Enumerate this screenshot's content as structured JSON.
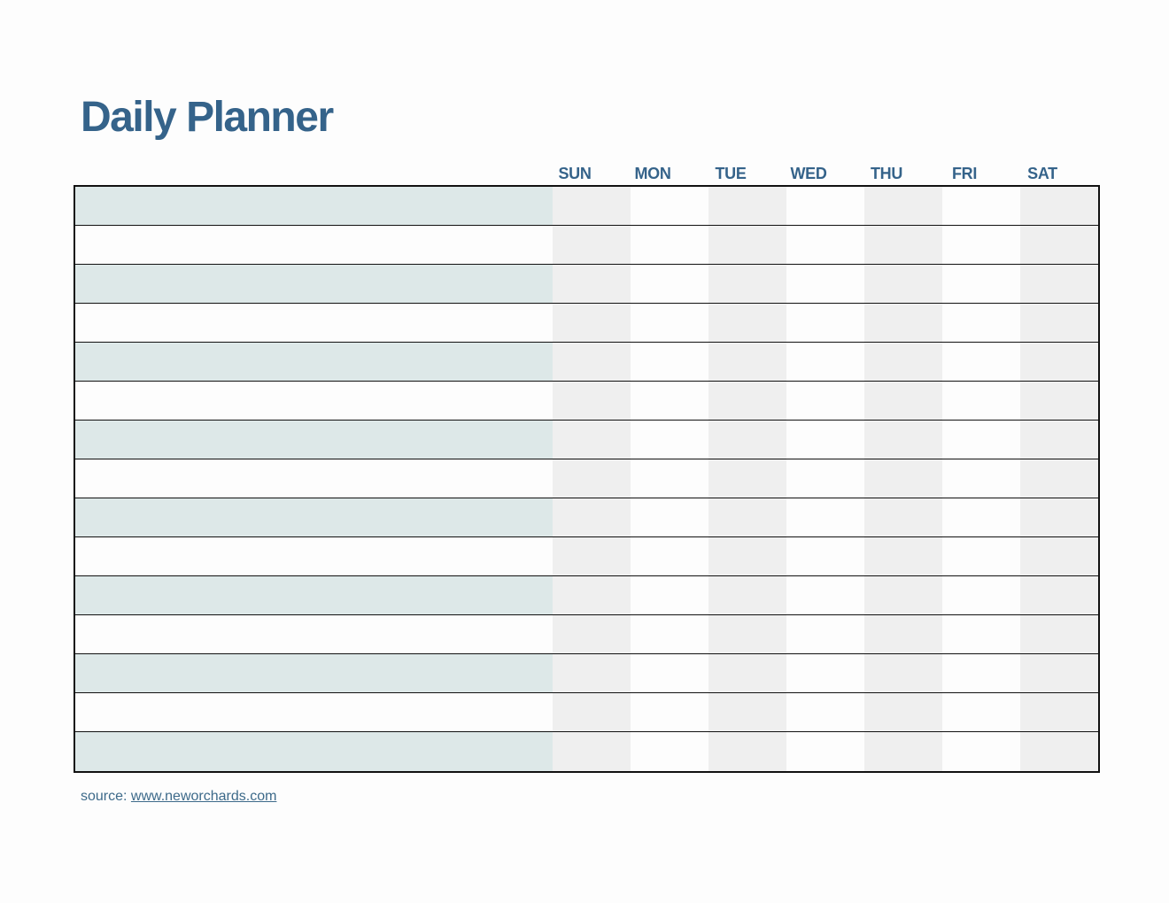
{
  "title": "Daily Planner",
  "table": {
    "day_headers": [
      "SUN",
      "MON",
      "TUE",
      "WED",
      "THU",
      "FRI",
      "SAT"
    ],
    "row_count": 15,
    "rows_are_blank": true
  },
  "source": {
    "label": "source:",
    "url": "www.neworchards.com"
  },
  "colors": {
    "accent": "#35638a",
    "link": "#3d6a8a",
    "row_alt": "#dde8e8",
    "stripe": "#efefef",
    "grid_line": "#111111",
    "page_bg": "#fdfdfd"
  }
}
